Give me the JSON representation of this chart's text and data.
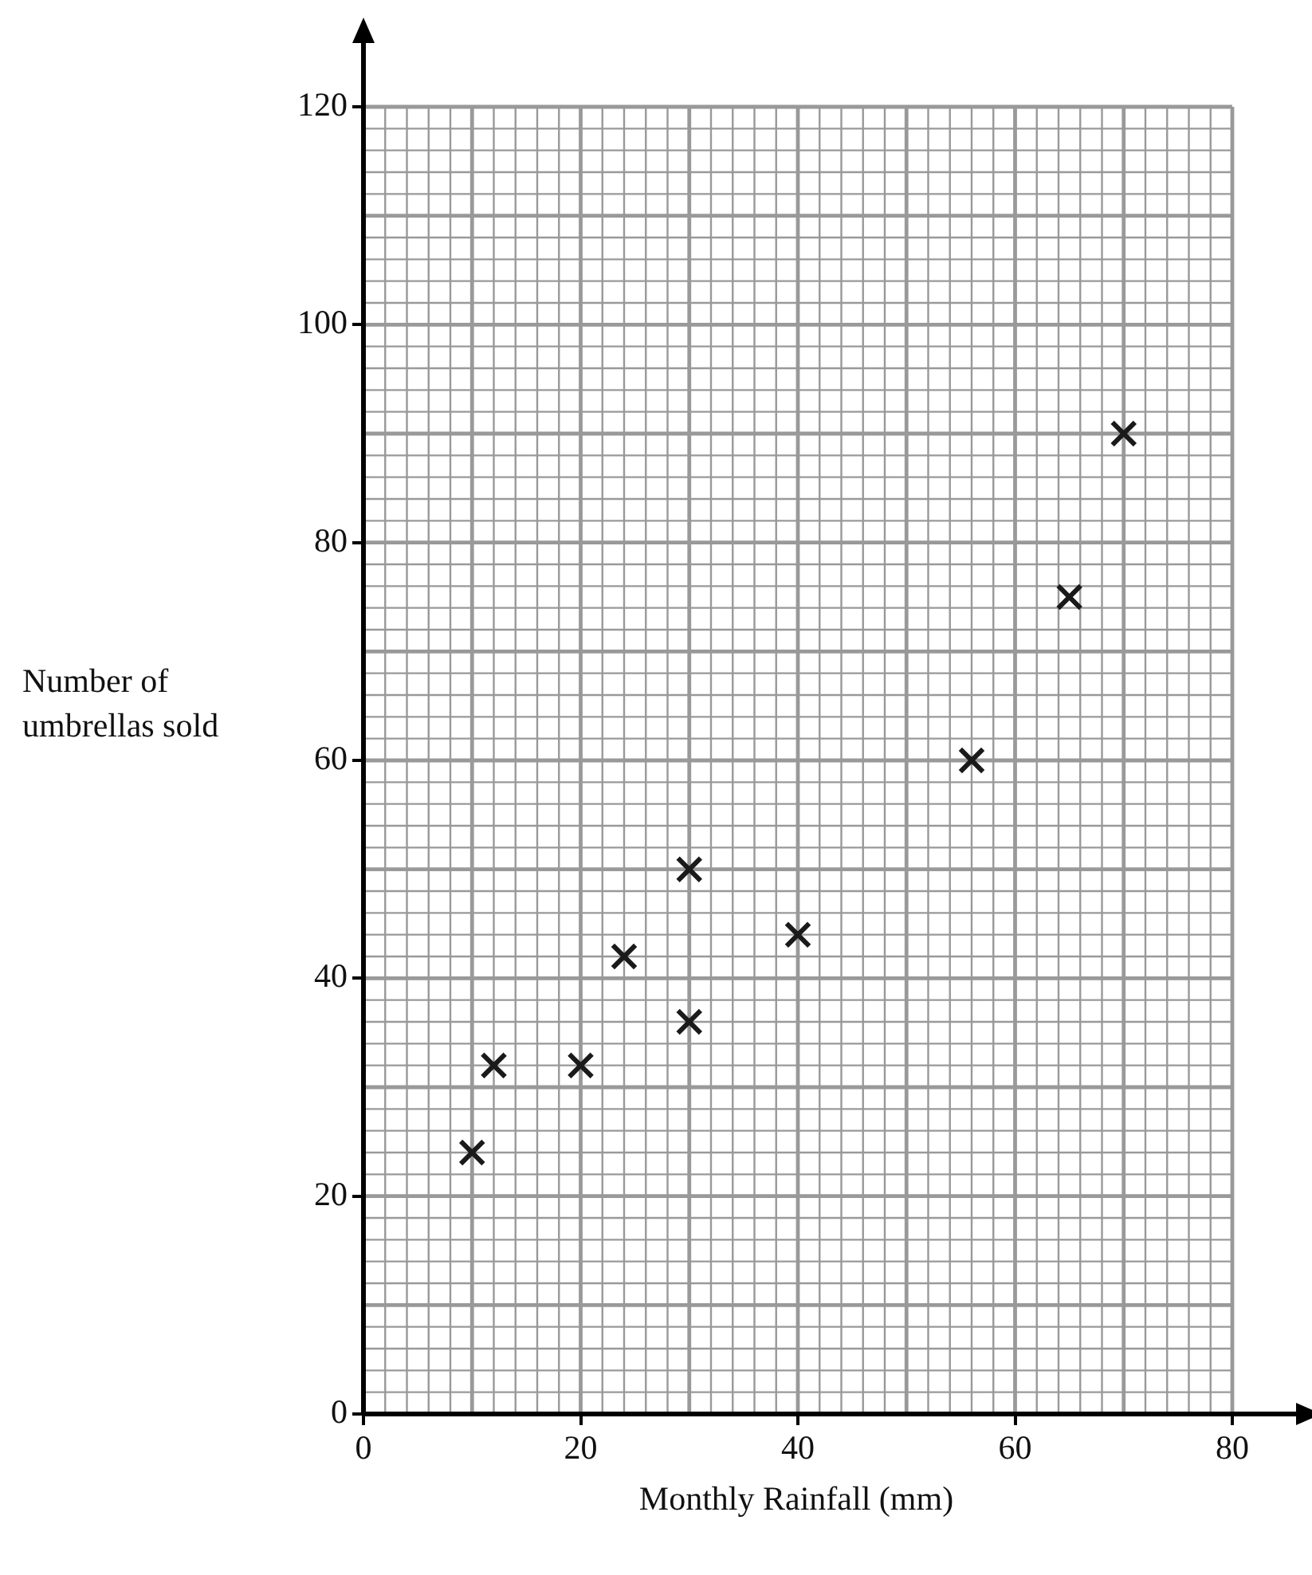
{
  "chart_data": {
    "type": "scatter",
    "xlabel": "Monthly Rainfall (mm)",
    "ylabel": "Number of umbrellas sold",
    "series": [
      {
        "color": "#1a1a1a",
        "x": [
          10,
          12,
          20,
          24,
          30,
          30,
          40,
          56,
          65,
          70
        ],
        "values": [
          24,
          32,
          32,
          42,
          50,
          36,
          44,
          60,
          75,
          90
        ]
      }
    ],
    "xlim": [
      0,
      80
    ],
    "ylim": [
      0,
      120
    ],
    "xticks": [
      0,
      20,
      40,
      60,
      80
    ],
    "yticks": [
      0,
      20,
      40,
      60,
      80,
      100,
      120
    ],
    "grid": true,
    "marker": "cross",
    "legend": false
  }
}
